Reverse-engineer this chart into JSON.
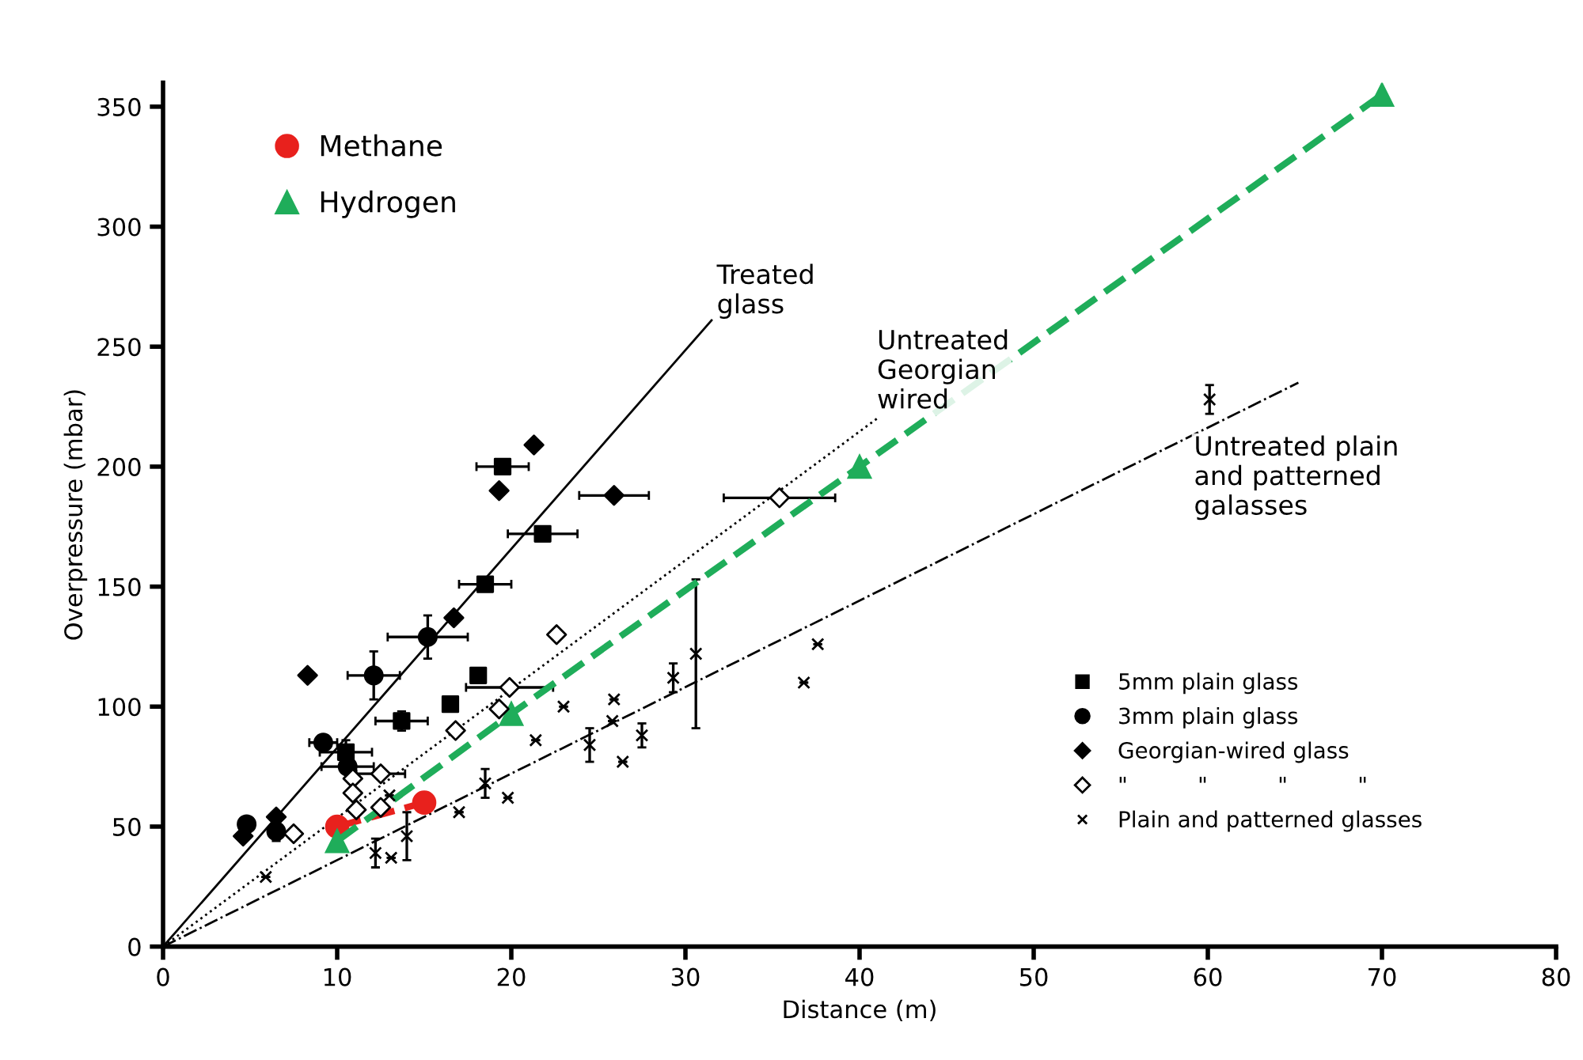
{
  "chart_data": {
    "type": "scatter",
    "xlabel": "Distance (m)",
    "ylabel": "Overpressure (mbar)",
    "xlim": [
      0,
      80
    ],
    "xticks": [
      0,
      10,
      20,
      30,
      40,
      50,
      60,
      70,
      80
    ],
    "ylim": [
      0,
      360
    ],
    "yticks": [
      0,
      50,
      100,
      150,
      200,
      250,
      300,
      350
    ],
    "grid": false,
    "legend": "top left",
    "series": [
      {
        "name": "Treated\nglass",
        "type": "line",
        "color": "#000000",
        "line_style": "solid",
        "marker": "none",
        "x": [
          0,
          31.5
        ],
        "values": [
          0,
          261
        ]
      },
      {
        "name": "Untreated\nGeorgian\nwired",
        "type": "line",
        "color": "#000000",
        "line_style": "dotted",
        "marker": "none",
        "x": [
          0,
          41
        ],
        "values": [
          0,
          220
        ]
      },
      {
        "name": "Untreated plain\nand patterned\ngalasses",
        "type": "line",
        "color": "#000000",
        "line_style": "dashdot",
        "marker": "none",
        "x": [
          0,
          65.2
        ],
        "values": [
          0,
          235
        ]
      },
      {
        "name": "5mm plain glass",
        "color": "#000000",
        "marker": "square",
        "x": [
          19.5,
          21.8,
          18.5,
          18.1,
          16.5,
          13.7,
          10.5
        ],
        "values": [
          200,
          172,
          151,
          113,
          101,
          94,
          81
        ],
        "xerrors": [
          1.5,
          2,
          1.5,
          null,
          null,
          1.5,
          1.5
        ],
        "errors": [
          null,
          null,
          null,
          null,
          null,
          4,
          5
        ]
      },
      {
        "name": "3mm plain glass",
        "color": "#000000",
        "marker": "circle",
        "x": [
          15.2,
          12.1,
          9.2,
          10.6,
          6.5,
          4.8
        ],
        "values": [
          129,
          113,
          85,
          75,
          48,
          51
        ],
        "xerrors": [
          2.3,
          1.5,
          0.8,
          1.5,
          null,
          null
        ],
        "errors": [
          9,
          10,
          null,
          null,
          4,
          null
        ]
      },
      {
        "name": "Georgian-wired glass",
        "color": "#000000",
        "marker": "diamond",
        "x": [
          21.3,
          19.3,
          25.9,
          16.7,
          8.3,
          6.5,
          4.6
        ],
        "values": [
          209,
          190,
          188,
          137,
          113,
          54,
          46
        ],
        "xerrors": [
          null,
          null,
          2,
          null,
          null,
          null,
          null
        ]
      },
      {
        "name": "\"          \"          \"          \"",
        "color": "#ffffff",
        "marker": "diamond",
        "x": [
          35.4,
          22.6,
          19.9,
          19.3,
          16.8,
          12.5,
          10.9,
          10.9,
          11.1,
          12.5,
          7.5
        ],
        "values": [
          187,
          130,
          108,
          99,
          90,
          72,
          70,
          64,
          57,
          58,
          47
        ],
        "xerrors": [
          3.2,
          null,
          2.5,
          null,
          null,
          1.4,
          null,
          null,
          null,
          null,
          null
        ]
      },
      {
        "name": "Plain and patterned glasses",
        "color": "#000000",
        "marker": "cross",
        "x": [
          5.9,
          12.2,
          13.1,
          14.0,
          13.0,
          17.0,
          18.5,
          19.8,
          21.4,
          23.0,
          24.5,
          25.9,
          25.8,
          26.4,
          27.5,
          29.3,
          30.6,
          36.8,
          37.6,
          60.1
        ],
        "values": [
          29,
          39,
          37,
          46,
          63,
          56,
          68,
          62,
          86,
          100,
          84,
          103,
          94,
          77,
          88,
          112,
          122,
          110,
          126,
          228
        ],
        "errors": [
          null,
          6,
          null,
          10,
          null,
          null,
          6,
          null,
          null,
          null,
          7,
          null,
          null,
          null,
          5,
          6,
          31,
          null,
          null,
          6
        ]
      },
      {
        "name": "Methane",
        "type": "line",
        "color": "#e8211d",
        "line_style": "dashed",
        "marker": "circle",
        "x": [
          10,
          15
        ],
        "values": [
          50,
          60
        ]
      },
      {
        "name": "Hydrogen",
        "type": "line",
        "color": "#1fad5a",
        "line_style": "dashed",
        "marker": "triangle",
        "x": [
          10,
          20,
          40,
          70
        ],
        "values": [
          44,
          97,
          200,
          355
        ]
      }
    ]
  }
}
